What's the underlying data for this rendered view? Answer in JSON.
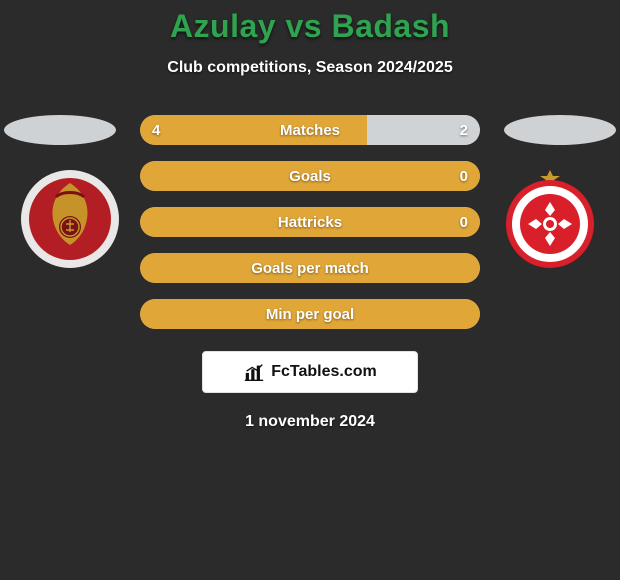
{
  "background_color": "#2b2b2b",
  "text_color": "#ffffff",
  "title": "Azulay vs Badash",
  "title_color": "#2fa34f",
  "title_fontsize": 32,
  "subtitle": "Club competitions, Season 2024/2025",
  "subtitle_fontsize": 16,
  "date": "1 november 2024",
  "ellipse_color": "#cfd2d4",
  "crest_left": {
    "bg": "#e9e8e6",
    "accent": "#b31e24",
    "gold": "#c79a2a"
  },
  "crest_right": {
    "bg": "#ffffff",
    "accent": "#d81f2a",
    "star": "#c79a2a"
  },
  "bar_defaults": {
    "height": 30,
    "radius": 15,
    "track_color": "#d0d3d5",
    "fill_color": "#e0a637",
    "label_fontsize": 15,
    "value_fontsize": 15
  },
  "bars": [
    {
      "label": "Matches",
      "left_value": "4",
      "right_value": "2",
      "left_pct": 66.7,
      "right_pct": 33.3,
      "show_values": true
    },
    {
      "label": "Goals",
      "left_value": "",
      "right_value": "0",
      "left_pct": 100,
      "right_pct": 0,
      "show_values": true
    },
    {
      "label": "Hattricks",
      "left_value": "",
      "right_value": "0",
      "left_pct": 100,
      "right_pct": 0,
      "show_values": true
    },
    {
      "label": "Goals per match",
      "left_value": "",
      "right_value": "",
      "left_pct": 100,
      "right_pct": 0,
      "show_values": false
    },
    {
      "label": "Min per goal",
      "left_value": "",
      "right_value": "",
      "left_pct": 100,
      "right_pct": 0,
      "show_values": false
    }
  ],
  "footer": {
    "text": "FcTables.com",
    "bg": "#ffffff",
    "text_color": "#111111"
  }
}
